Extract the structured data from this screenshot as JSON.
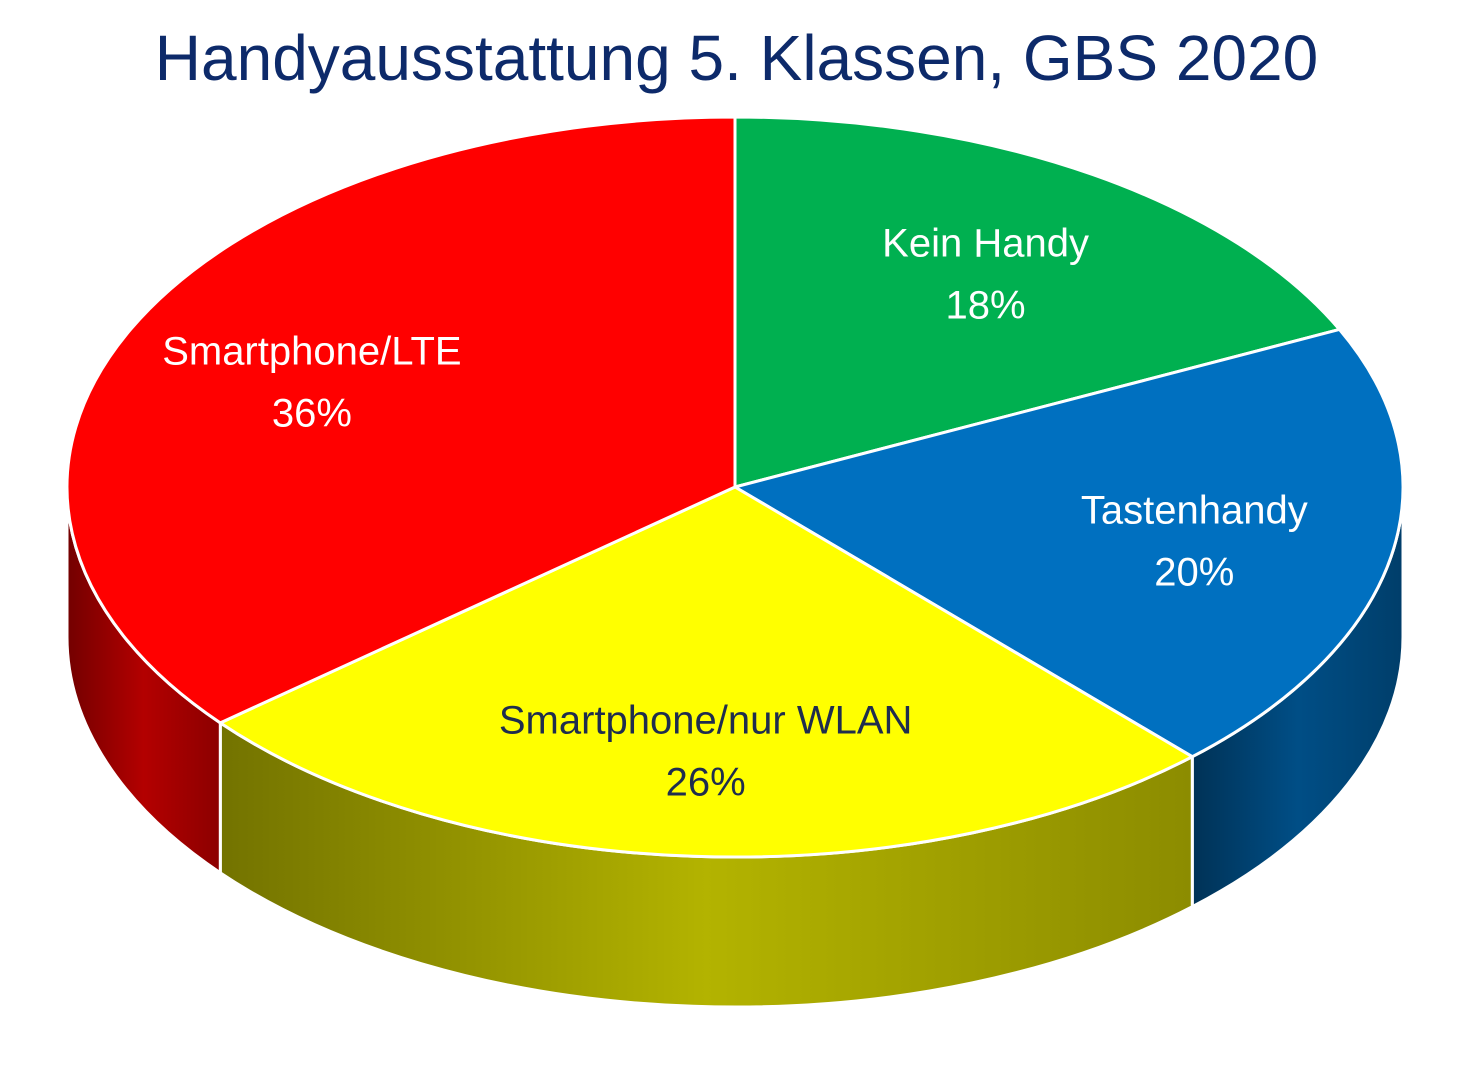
{
  "chart_data": {
    "type": "pie",
    "title": "Handyausstattung 5. Klassen, GBS 2020",
    "categories": [
      "Kein Handy",
      "Tastenhandy",
      "Smartphone/nur WLAN",
      "Smartphone/LTE"
    ],
    "values": [
      18,
      20,
      26,
      36
    ],
    "value_labels": [
      "18%",
      "20%",
      "26%",
      "36%"
    ],
    "colors": [
      "#00b050",
      "#0070c0",
      "#ffff00",
      "#ff0000"
    ],
    "label_colors": [
      "#ffffff",
      "#ffffff",
      "#1f2d4e",
      "#ffffff"
    ],
    "style": "3d-exploded-view",
    "legend": "none"
  }
}
